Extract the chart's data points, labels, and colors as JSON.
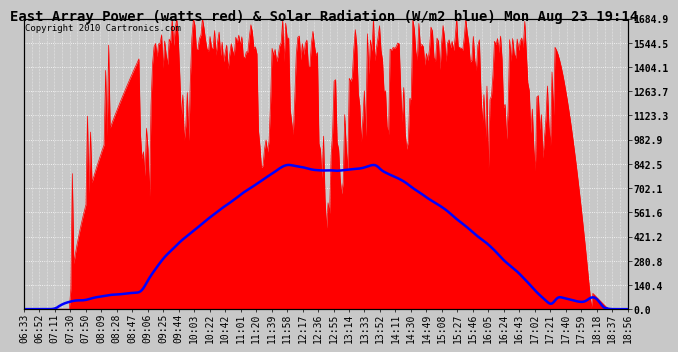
{
  "title": "East Array Power (watts red) & Solar Radiation (W/m2 blue) Mon Aug 23 19:14",
  "copyright": "Copyright 2010 Cartronics.com",
  "ylim": [
    0.0,
    1684.9
  ],
  "yticks": [
    0.0,
    140.4,
    280.8,
    421.2,
    561.6,
    702.1,
    842.5,
    982.9,
    1123.3,
    1263.7,
    1404.1,
    1544.5,
    1684.9
  ],
  "x_labels": [
    "06:33",
    "06:52",
    "07:11",
    "07:30",
    "07:50",
    "08:09",
    "08:28",
    "08:47",
    "09:06",
    "09:25",
    "09:44",
    "10:03",
    "10:22",
    "10:42",
    "11:01",
    "11:20",
    "11:39",
    "11:58",
    "12:17",
    "12:36",
    "12:55",
    "13:14",
    "13:33",
    "13:52",
    "14:11",
    "14:30",
    "14:49",
    "15:08",
    "15:27",
    "15:46",
    "16:05",
    "16:24",
    "16:43",
    "17:02",
    "17:21",
    "17:40",
    "17:59",
    "18:18",
    "18:37",
    "18:56"
  ],
  "bg_color": "#c8c8c8",
  "title_fontsize": 10,
  "tick_fontsize": 7,
  "copyright_fontsize": 6.5
}
